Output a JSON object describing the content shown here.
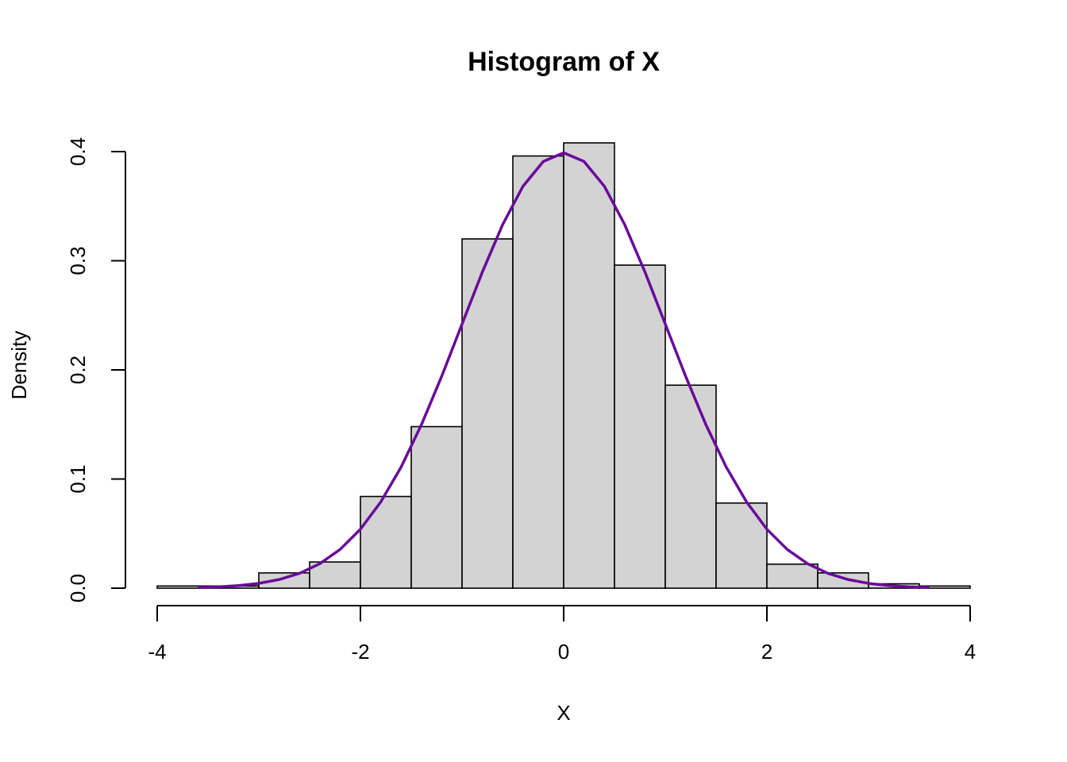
{
  "chart_data": {
    "type": "histogram",
    "title": "Histogram of X",
    "x_label": "X",
    "y_label": "Density",
    "bins": [
      -4,
      -3.5,
      -3,
      -2.5,
      -2,
      -1.5,
      -1,
      -0.5,
      0,
      0.5,
      1,
      1.5,
      2,
      2.5,
      3,
      3.5,
      4
    ],
    "values": [
      0.002,
      0.002,
      0.014,
      0.024,
      0.084,
      0.148,
      0.32,
      0.396,
      0.408,
      0.296,
      0.186,
      0.078,
      0.022,
      0.014,
      0.004,
      0.002
    ],
    "color": "#d3d3d3",
    "xlim": [
      -4,
      4
    ],
    "ylim": [
      0,
      0.4
    ],
    "xticks": [
      -4,
      -2,
      0,
      2,
      4
    ],
    "yticks": [
      {
        "value": 0,
        "label": "0.0"
      },
      0.1,
      0.2,
      0.3,
      0.4
    ],
    "overlay": {
      "type": "line",
      "color": "#6a0a9a",
      "x": [
        -3.6,
        -3.4,
        -3.2,
        -3.0,
        -2.8,
        -2.6,
        -2.4,
        -2.2,
        -2.0,
        -1.8,
        -1.6,
        -1.4,
        -1.2,
        -1.0,
        -0.8,
        -0.6,
        -0.4,
        -0.2,
        0,
        0.2,
        0.4,
        0.6,
        0.8,
        1.0,
        1.2,
        1.4,
        1.6,
        1.8,
        2.0,
        2.2,
        2.4,
        2.6,
        2.8,
        3.0,
        3.2,
        3.4,
        3.6
      ],
      "values": [
        0.0006,
        0.0012,
        0.0024,
        0.0044,
        0.0079,
        0.0136,
        0.0224,
        0.0355,
        0.054,
        0.079,
        0.1109,
        0.1497,
        0.1942,
        0.242,
        0.2897,
        0.3332,
        0.3683,
        0.391,
        0.3989,
        0.391,
        0.3683,
        0.3332,
        0.2897,
        0.242,
        0.1942,
        0.1497,
        0.1109,
        0.079,
        0.054,
        0.0355,
        0.0224,
        0.0136,
        0.0079,
        0.0044,
        0.0024,
        0.0012,
        0.0006
      ]
    }
  }
}
